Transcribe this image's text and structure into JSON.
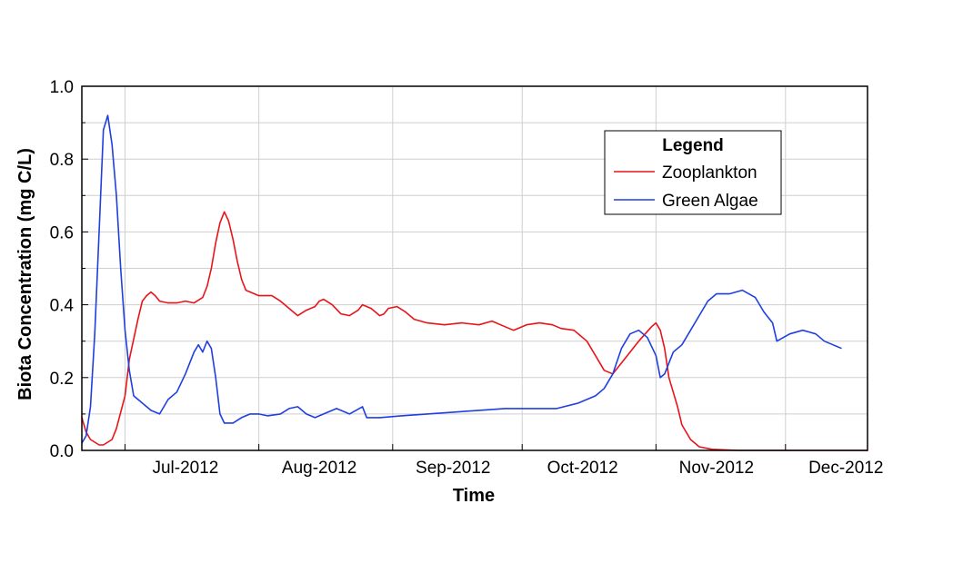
{
  "chart_data": {
    "type": "line",
    "xlabel": "Time",
    "ylabel": "Biota Concentration (mg C/L)",
    "ylim": [
      0,
      1.0
    ],
    "xlim": [
      "2012-06-21",
      "2012-12-20"
    ],
    "y_ticks": [
      "0.0",
      "0.2",
      "0.4",
      "0.6",
      "0.8",
      "1.0"
    ],
    "x_tick_labels": [
      "Jul-2012",
      "Aug-2012",
      "Sep-2012",
      "Oct-2012",
      "Nov-2012",
      "Dec-2012"
    ],
    "grid": true,
    "legend": {
      "title": "Legend",
      "position": "top-right",
      "entries": [
        {
          "name": "Zooplankton",
          "color": "#e8141a"
        },
        {
          "name": "Green Algae",
          "color": "#1f3fe0"
        }
      ]
    },
    "series": [
      {
        "name": "Zooplankton",
        "color": "#e8141a",
        "points": [
          [
            "2012-06-21",
            0.09
          ],
          [
            "2012-06-22",
            0.05
          ],
          [
            "2012-06-23",
            0.03
          ],
          [
            "2012-06-25",
            0.015
          ],
          [
            "2012-06-26",
            0.015
          ],
          [
            "2012-06-28",
            0.03
          ],
          [
            "2012-06-29",
            0.06
          ],
          [
            "2012-07-01",
            0.15
          ],
          [
            "2012-07-02",
            0.25
          ],
          [
            "2012-07-04",
            0.36
          ],
          [
            "2012-07-05",
            0.41
          ],
          [
            "2012-07-06",
            0.425
          ],
          [
            "2012-07-07",
            0.435
          ],
          [
            "2012-07-08",
            0.425
          ],
          [
            "2012-07-09",
            0.41
          ],
          [
            "2012-07-11",
            0.405
          ],
          [
            "2012-07-13",
            0.405
          ],
          [
            "2012-07-15",
            0.41
          ],
          [
            "2012-07-17",
            0.405
          ],
          [
            "2012-07-19",
            0.42
          ],
          [
            "2012-07-20",
            0.45
          ],
          [
            "2012-07-21",
            0.5
          ],
          [
            "2012-07-22",
            0.57
          ],
          [
            "2012-07-23",
            0.625
          ],
          [
            "2012-07-24",
            0.655
          ],
          [
            "2012-07-25",
            0.63
          ],
          [
            "2012-07-26",
            0.58
          ],
          [
            "2012-07-27",
            0.52
          ],
          [
            "2012-07-28",
            0.47
          ],
          [
            "2012-07-29",
            0.44
          ],
          [
            "2012-07-31",
            0.43
          ],
          [
            "2012-08-01",
            0.425
          ],
          [
            "2012-08-04",
            0.425
          ],
          [
            "2012-08-06",
            0.41
          ],
          [
            "2012-08-08",
            0.39
          ],
          [
            "2012-08-10",
            0.37
          ],
          [
            "2012-08-12",
            0.385
          ],
          [
            "2012-08-14",
            0.395
          ],
          [
            "2012-08-15",
            0.41
          ],
          [
            "2012-08-16",
            0.415
          ],
          [
            "2012-08-18",
            0.4
          ],
          [
            "2012-08-20",
            0.375
          ],
          [
            "2012-08-22",
            0.37
          ],
          [
            "2012-08-24",
            0.385
          ],
          [
            "2012-08-25",
            0.4
          ],
          [
            "2012-08-27",
            0.39
          ],
          [
            "2012-08-29",
            0.37
          ],
          [
            "2012-08-30",
            0.375
          ],
          [
            "2012-08-31",
            0.39
          ],
          [
            "2012-09-02",
            0.395
          ],
          [
            "2012-09-04",
            0.38
          ],
          [
            "2012-09-06",
            0.36
          ],
          [
            "2012-09-09",
            0.35
          ],
          [
            "2012-09-13",
            0.345
          ],
          [
            "2012-09-17",
            0.35
          ],
          [
            "2012-09-21",
            0.345
          ],
          [
            "2012-09-24",
            0.355
          ],
          [
            "2012-09-27",
            0.34
          ],
          [
            "2012-09-29",
            0.33
          ],
          [
            "2012-10-02",
            0.345
          ],
          [
            "2012-10-05",
            0.35
          ],
          [
            "2012-10-08",
            0.345
          ],
          [
            "2012-10-10",
            0.335
          ],
          [
            "2012-10-13",
            0.33
          ],
          [
            "2012-10-16",
            0.3
          ],
          [
            "2012-10-18",
            0.26
          ],
          [
            "2012-10-20",
            0.22
          ],
          [
            "2012-10-22",
            0.21
          ],
          [
            "2012-10-24",
            0.24
          ],
          [
            "2012-10-26",
            0.27
          ],
          [
            "2012-10-28",
            0.3
          ],
          [
            "2012-10-31",
            0.34
          ],
          [
            "2012-11-01",
            0.35
          ],
          [
            "2012-11-02",
            0.33
          ],
          [
            "2012-11-03",
            0.28
          ],
          [
            "2012-11-04",
            0.2
          ],
          [
            "2012-11-06",
            0.12
          ],
          [
            "2012-11-07",
            0.07
          ],
          [
            "2012-11-09",
            0.03
          ],
          [
            "2012-11-11",
            0.01
          ],
          [
            "2012-11-14",
            0.003
          ],
          [
            "2012-11-20",
            0.0
          ],
          [
            "2012-12-20",
            0.0
          ]
        ]
      },
      {
        "name": "Green Algae",
        "color": "#1f3fe0",
        "points": [
          [
            "2012-06-21",
            0.02
          ],
          [
            "2012-06-22",
            0.04
          ],
          [
            "2012-06-23",
            0.12
          ],
          [
            "2012-06-24",
            0.32
          ],
          [
            "2012-06-25",
            0.6
          ],
          [
            "2012-06-26",
            0.88
          ],
          [
            "2012-06-27",
            0.92
          ],
          [
            "2012-06-28",
            0.84
          ],
          [
            "2012-06-29",
            0.7
          ],
          [
            "2012-06-30",
            0.5
          ],
          [
            "2012-07-01",
            0.33
          ],
          [
            "2012-07-02",
            0.22
          ],
          [
            "2012-07-03",
            0.15
          ],
          [
            "2012-07-05",
            0.13
          ],
          [
            "2012-07-07",
            0.11
          ],
          [
            "2012-07-09",
            0.1
          ],
          [
            "2012-07-11",
            0.14
          ],
          [
            "2012-07-13",
            0.16
          ],
          [
            "2012-07-15",
            0.21
          ],
          [
            "2012-07-17",
            0.27
          ],
          [
            "2012-07-18",
            0.29
          ],
          [
            "2012-07-19",
            0.27
          ],
          [
            "2012-07-20",
            0.3
          ],
          [
            "2012-07-21",
            0.28
          ],
          [
            "2012-07-22",
            0.2
          ],
          [
            "2012-07-23",
            0.1
          ],
          [
            "2012-07-24",
            0.075
          ],
          [
            "2012-07-26",
            0.075
          ],
          [
            "2012-07-28",
            0.09
          ],
          [
            "2012-07-30",
            0.1
          ],
          [
            "2012-08-01",
            0.1
          ],
          [
            "2012-08-03",
            0.095
          ],
          [
            "2012-08-06",
            0.1
          ],
          [
            "2012-08-08",
            0.115
          ],
          [
            "2012-08-10",
            0.12
          ],
          [
            "2012-08-12",
            0.1
          ],
          [
            "2012-08-14",
            0.09
          ],
          [
            "2012-08-17",
            0.105
          ],
          [
            "2012-08-19",
            0.115
          ],
          [
            "2012-08-22",
            0.1
          ],
          [
            "2012-08-25",
            0.12
          ],
          [
            "2012-08-26",
            0.09
          ],
          [
            "2012-08-29",
            0.09
          ],
          [
            "2012-09-03",
            0.095
          ],
          [
            "2012-09-09",
            0.1
          ],
          [
            "2012-09-15",
            0.105
          ],
          [
            "2012-09-21",
            0.11
          ],
          [
            "2012-09-27",
            0.115
          ],
          [
            "2012-10-03",
            0.115
          ],
          [
            "2012-10-09",
            0.115
          ],
          [
            "2012-10-14",
            0.13
          ],
          [
            "2012-10-18",
            0.15
          ],
          [
            "2012-10-20",
            0.17
          ],
          [
            "2012-10-22",
            0.21
          ],
          [
            "2012-10-24",
            0.28
          ],
          [
            "2012-10-26",
            0.32
          ],
          [
            "2012-10-28",
            0.33
          ],
          [
            "2012-10-30",
            0.31
          ],
          [
            "2012-11-01",
            0.26
          ],
          [
            "2012-11-02",
            0.2
          ],
          [
            "2012-11-03",
            0.21
          ],
          [
            "2012-11-04",
            0.24
          ],
          [
            "2012-11-05",
            0.27
          ],
          [
            "2012-11-07",
            0.29
          ],
          [
            "2012-11-09",
            0.33
          ],
          [
            "2012-11-11",
            0.37
          ],
          [
            "2012-11-13",
            0.41
          ],
          [
            "2012-11-15",
            0.43
          ],
          [
            "2012-11-18",
            0.43
          ],
          [
            "2012-11-21",
            0.44
          ],
          [
            "2012-11-24",
            0.42
          ],
          [
            "2012-11-26",
            0.38
          ],
          [
            "2012-11-28",
            0.35
          ],
          [
            "2012-11-29",
            0.3
          ],
          [
            "2012-12-02",
            0.32
          ],
          [
            "2012-12-05",
            0.33
          ],
          [
            "2012-12-08",
            0.32
          ],
          [
            "2012-12-10",
            0.3
          ],
          [
            "2012-12-12",
            0.29
          ],
          [
            "2012-12-14",
            0.28
          ]
        ]
      }
    ]
  }
}
